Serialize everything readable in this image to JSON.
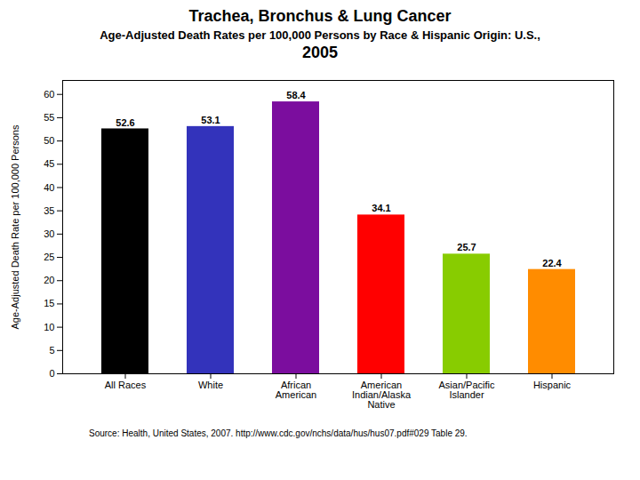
{
  "chart_data": {
    "type": "bar",
    "title": "Trachea, Bronchus & Lung Cancer",
    "subtitle": [
      "Age-Adjusted Death Rates per 100,000 Persons by Race & Hispanic Origin: U.S.,",
      "2005"
    ],
    "source": "Source:  Health, United States, 2007.  http://www.cdc.gov/nchs/data/hus/hus07.pdf#029   Table 29.",
    "categories": [
      "All Races",
      "White",
      "African\nAmerican",
      "American\nIndian/Alaska\nNative",
      "Asian/Pacific\nIslander",
      "Hispanic"
    ],
    "values": [
      52.6,
      53.1,
      58.4,
      34.1,
      25.7,
      22.4
    ],
    "colors": [
      "#000000",
      "#3333BB",
      "#7B0D9E",
      "#FF0000",
      "#88CC00",
      "#FF8C00"
    ],
    "ylabel": "Age-Adjusted Death Rate per 100,000 Persons",
    "ylim": [
      0,
      63
    ],
    "yticks": [
      0,
      5,
      10,
      15,
      20,
      25,
      30,
      35,
      40,
      45,
      50,
      55,
      60
    ],
    "data_labels": true,
    "grid": false
  }
}
